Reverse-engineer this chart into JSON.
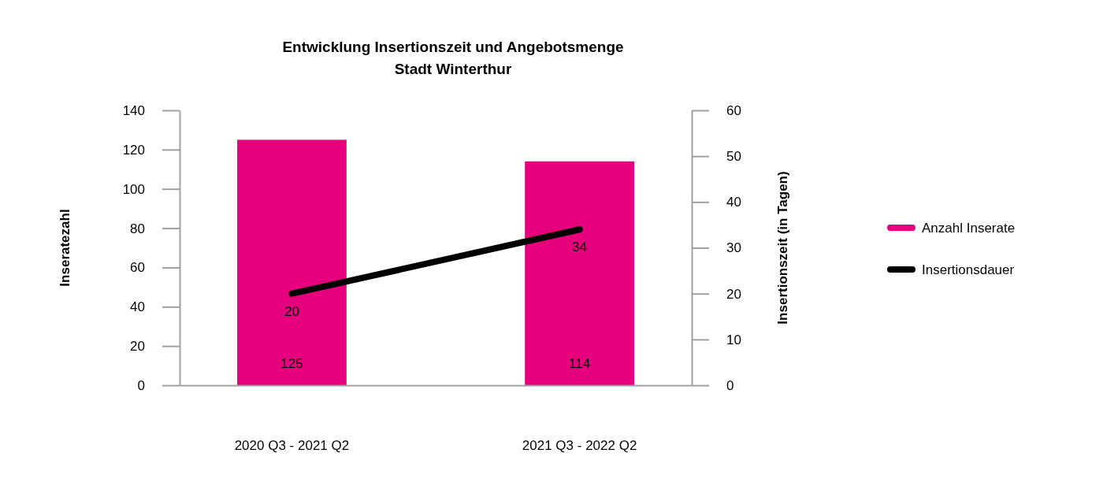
{
  "chart_data": {
    "type": "bar",
    "title": "Entwicklung Insertionszeit und Angebotsmenge",
    "subtitle": "Stadt Winterthur",
    "ylabel": "Inseratezahl",
    "y2label": "Insertionszeit (in Tagen)",
    "categories": [
      "2020 Q3 - 2021 Q2",
      "2021 Q3 - 2022 Q2"
    ],
    "series": [
      {
        "name": "Anzahl Inserate",
        "color": "#e6007e",
        "values": [
          125,
          114
        ]
      },
      {
        "name": "Insertionsdauer",
        "type": "line",
        "axis": "y2",
        "color": "#000000",
        "values": [
          20,
          34
        ]
      }
    ],
    "ylim": [
      0,
      140
    ],
    "yticks": [
      0,
      20,
      40,
      60,
      80,
      100,
      120,
      140
    ],
    "y2lim": [
      0,
      60
    ],
    "y2ticks": [
      0,
      10,
      20,
      30,
      40,
      50,
      60
    ],
    "data_labels": true,
    "legend": "right",
    "grid": false
  }
}
